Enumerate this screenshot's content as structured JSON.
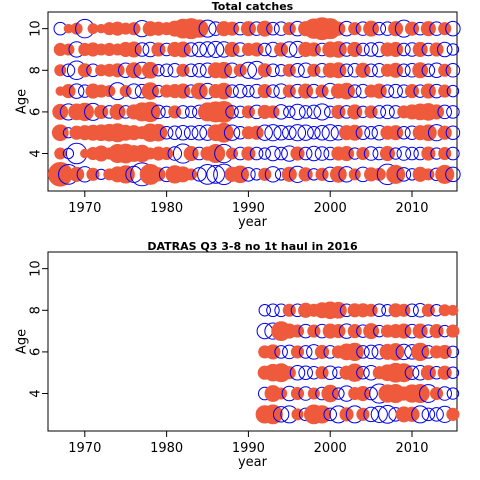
{
  "colors": {
    "positive": "#ef5a3c",
    "negative": "#0000ee"
  },
  "chart_data": [
    {
      "type": "scatter",
      "subtype": "bubble",
      "title": "Total catches",
      "xlabel": "year",
      "ylabel": "Age",
      "xlim": [
        1965.5,
        2015.5
      ],
      "ylim": [
        2.2,
        10.8
      ],
      "xticks": [
        1970,
        1980,
        1990,
        2000,
        2010
      ],
      "yticks": [
        4,
        6,
        8,
        10
      ],
      "years": [
        1967,
        1968,
        1969,
        1970,
        1971,
        1972,
        1973,
        1974,
        1975,
        1976,
        1977,
        1978,
        1979,
        1980,
        1981,
        1982,
        1983,
        1984,
        1985,
        1986,
        1987,
        1988,
        1989,
        1990,
        1991,
        1992,
        1993,
        1994,
        1995,
        1996,
        1997,
        1998,
        1999,
        2000,
        2001,
        2002,
        2003,
        2004,
        2005,
        2006,
        2007,
        2008,
        2009,
        2010,
        2011,
        2012,
        2013,
        2014,
        2015
      ],
      "ages": [
        3,
        4,
        5,
        6,
        7,
        8,
        9,
        10
      ],
      "note": "residual signs/sizes per age row (positive = filled, negative = open)",
      "residuals": {
        "3": [
          2.2,
          -1.5,
          0.8,
          -0.9,
          0.6,
          -0.4,
          0.5,
          0.9,
          1.2,
          -1.0,
          -2.0,
          1.6,
          0.7,
          -0.8,
          1.2,
          0.9,
          0.5,
          -0.7,
          -1.5,
          -1.2,
          -1.6,
          0.8,
          1.1,
          -0.7,
          -0.5,
          0.6,
          -0.9,
          -0.5,
          0.8,
          -1.0,
          0.7,
          -0.5,
          0.6,
          -0.8,
          1.0,
          -0.9,
          0.5,
          -0.8,
          0.7,
          0.6,
          -1.6,
          1.3,
          -0.7,
          -0.5,
          0.8,
          0.5,
          -0.6,
          1.3,
          -0.8
        ],
        "4": [
          0.5,
          -0.4,
          -1.6,
          0.3,
          0.6,
          0.9,
          0.5,
          1.3,
          1.4,
          1.0,
          1.1,
          0.5,
          0.7,
          0.6,
          -0.7,
          -1.4,
          0.8,
          -0.6,
          0.7,
          1.3,
          -1.3,
          0.5,
          -0.6,
          0.7,
          -0.6,
          -0.5,
          -0.8,
          -0.6,
          -0.9,
          0.7,
          -0.6,
          -0.8,
          -0.7,
          -0.6,
          0.7,
          0.8,
          -0.5,
          0.6,
          -0.7,
          -0.6,
          0.8,
          -0.5,
          -0.7,
          -0.6,
          -0.6,
          0.7,
          -0.5,
          0.6,
          -0.6
        ],
        "5": [
          1.0,
          -0.4,
          0.7,
          0.8,
          0.9,
          1.0,
          1.1,
          1.3,
          0.9,
          0.8,
          0.6,
          1.2,
          1.1,
          -0.6,
          -0.7,
          -0.8,
          -0.7,
          -0.8,
          -0.9,
          1.0,
          1.4,
          -0.9,
          -0.6,
          0.6,
          0.7,
          -0.9,
          -1.0,
          -0.8,
          -0.7,
          -1.0,
          -0.9,
          -0.6,
          -0.8,
          -1.0,
          -0.8,
          0.8,
          0.9,
          -0.7,
          -0.6,
          -0.8,
          0.7,
          0.8,
          -0.6,
          -0.7,
          0.8,
          1.0,
          -1.0,
          0.7,
          -0.7
        ],
        "6": [
          0.9,
          -1.0,
          1.0,
          1.2,
          -1.1,
          0.7,
          -0.6,
          0.9,
          -0.6,
          0.8,
          1.3,
          1.5,
          -0.7,
          -0.5,
          0.6,
          -0.6,
          -0.5,
          -0.7,
          1.3,
          1.6,
          1.7,
          -0.6,
          -0.5,
          0.6,
          -0.7,
          0.7,
          0.6,
          -0.8,
          -0.5,
          -0.9,
          -0.6,
          -0.7,
          -1.0,
          -0.5,
          0.7,
          -0.6,
          0.8,
          -0.5,
          0.6,
          -0.6,
          -0.7,
          -0.6,
          0.6,
          0.8,
          1.0,
          1.1,
          0.8,
          -0.7,
          -0.6
        ],
        "7": [
          0.3,
          0.7,
          -0.8,
          -0.6,
          0.8,
          0.6,
          0.5,
          -1.1,
          0.5,
          -0.8,
          -0.7,
          1.1,
          -0.5,
          0.6,
          0.7,
          0.8,
          -0.6,
          1.0,
          -0.9,
          0.7,
          1.0,
          -0.6,
          -0.7,
          -0.5,
          -0.7,
          0.7,
          -0.6,
          -0.8,
          0.6,
          -0.7,
          0.8,
          -0.7,
          0.6,
          -0.9,
          0.8,
          1.0,
          -0.6,
          -0.7,
          0.6,
          0.8,
          -0.6,
          -0.7,
          -0.6,
          0.7,
          -0.6,
          0.8,
          -0.7,
          0.6,
          -0.5
        ],
        "8": [
          0.5,
          -0.6,
          -1.3,
          0.7,
          -0.6,
          0.5,
          0.6,
          0.7,
          -0.8,
          0.9,
          -1.0,
          1.0,
          -0.5,
          -0.6,
          -0.7,
          0.6,
          -0.6,
          -0.7,
          -0.8,
          0.9,
          1.0,
          -0.8,
          0.6,
          -1.0,
          -1.2,
          0.7,
          -0.6,
          -0.5,
          0.6,
          -0.7,
          -0.8,
          0.6,
          -0.7,
          0.8,
          0.9,
          -0.6,
          -0.7,
          0.8,
          -0.6,
          -0.7,
          0.6,
          0.8,
          -0.6,
          -0.7,
          0.9,
          -0.6,
          -0.8,
          0.6,
          -0.7
        ],
        "9": [
          0.6,
          0.5,
          -0.9,
          0.6,
          0.7,
          0.5,
          0.6,
          0.5,
          0.8,
          0.9,
          -0.7,
          -0.8,
          0.7,
          -0.6,
          0.8,
          0.9,
          -0.7,
          -0.8,
          -0.9,
          -1.0,
          -0.9,
          0.8,
          -0.7,
          0.6,
          0.7,
          -0.6,
          -0.8,
          0.7,
          -0.9,
          -1.0,
          0.8,
          0.7,
          -0.6,
          0.9,
          1.0,
          -0.7,
          0.8,
          -0.6,
          -0.7,
          -0.8,
          0.7,
          0.8,
          -0.6,
          -0.7,
          0.8,
          -0.6,
          0.7,
          -0.8,
          -0.5
        ],
        "10": [
          -0.6,
          0.3,
          0.5,
          -1.3,
          0.4,
          0.3,
          0.6,
          0.7,
          0.5,
          0.6,
          -1.0,
          0.8,
          0.7,
          0.6,
          0.9,
          1.4,
          1.6,
          1.2,
          -1.1,
          -0.7,
          0.8,
          0.7,
          -0.6,
          0.8,
          -0.7,
          0.9,
          -0.6,
          -0.7,
          0.6,
          -0.8,
          0.8,
          1.5,
          1.9,
          1.6,
          0.7,
          -0.8,
          0.6,
          -0.7,
          0.9,
          -0.6,
          -0.7,
          0.8,
          -1.1,
          0.7,
          -0.6,
          0.8,
          -0.7,
          0.6,
          -0.8
        ]
      }
    },
    {
      "type": "scatter",
      "subtype": "bubble",
      "title": "DATRAS Q3 3-8 no 1t haul in 2016",
      "xlabel": "year",
      "ylabel": "Age",
      "xlim": [
        1965.5,
        2015.5
      ],
      "ylim": [
        2.2,
        10.8
      ],
      "xticks": [
        1970,
        1980,
        1990,
        2000,
        2010
      ],
      "yticks": [
        4,
        6,
        8,
        10
      ],
      "years": [
        1992,
        1993,
        1994,
        1995,
        1996,
        1997,
        1998,
        1999,
        2000,
        2001,
        2002,
        2003,
        2004,
        2005,
        2006,
        2007,
        2008,
        2009,
        2010,
        2011,
        2012,
        2013,
        2014,
        2015
      ],
      "ages": [
        3,
        4,
        5,
        6,
        7,
        8
      ],
      "residuals": {
        "3": [
          1.2,
          1.4,
          -0.9,
          -1.1,
          0.5,
          -0.6,
          1.4,
          1.2,
          -0.6,
          -1.1,
          0.7,
          -1.1,
          0.6,
          -0.8,
          -1.0,
          -1.2,
          -0.7,
          0.9,
          0.8,
          -1.1,
          -0.6,
          -0.7,
          -1.0,
          0.6
        ],
        "4": [
          -0.6,
          1.0,
          0.5,
          -0.8,
          0.6,
          -0.7,
          0.5,
          -0.6,
          1.1,
          -0.5,
          -0.9,
          0.6,
          0.8,
          -0.6,
          -1.4,
          1.2,
          1.3,
          0.7,
          1.2,
          1.3,
          -1.2,
          0.6,
          -0.7,
          -0.5
        ],
        "5": [
          0.7,
          1.1,
          1.3,
          0.6,
          -0.8,
          -0.7,
          -0.6,
          0.6,
          -0.7,
          -0.5,
          0.7,
          1.2,
          -0.6,
          -0.8,
          0.6,
          1.0,
          1.4,
          1.3,
          -0.7,
          -0.8,
          0.8,
          -0.6,
          0.7,
          -0.5
        ],
        "6": [
          0.6,
          0.8,
          -0.6,
          -0.7,
          0.6,
          -0.6,
          -0.8,
          0.7,
          -0.6,
          0.6,
          1.0,
          1.2,
          -0.6,
          -0.7,
          -0.8,
          0.9,
          1.1,
          -0.9,
          -0.8,
          1.2,
          -0.6,
          0.6,
          0.7,
          -0.5
        ],
        "7": [
          -0.9,
          -1.0,
          1.4,
          0.8,
          0.6,
          -0.7,
          0.6,
          -0.7,
          0.8,
          0.7,
          -0.8,
          0.7,
          -0.6,
          0.9,
          -0.5,
          0.6,
          0.7,
          0.8,
          -0.7,
          0.8,
          -0.6,
          0.7,
          -0.5,
          0.6
        ],
        "8": [
          -0.5,
          -0.6,
          -0.6,
          0.6,
          -0.6,
          0.8,
          0.6,
          0.9,
          1.1,
          1.0,
          -0.6,
          0.7,
          0.7,
          0.6,
          -0.6,
          -0.5,
          0.7,
          0.6,
          -0.6,
          -0.7,
          0.6,
          -0.5,
          0.5,
          0.4
        ]
      }
    }
  ]
}
